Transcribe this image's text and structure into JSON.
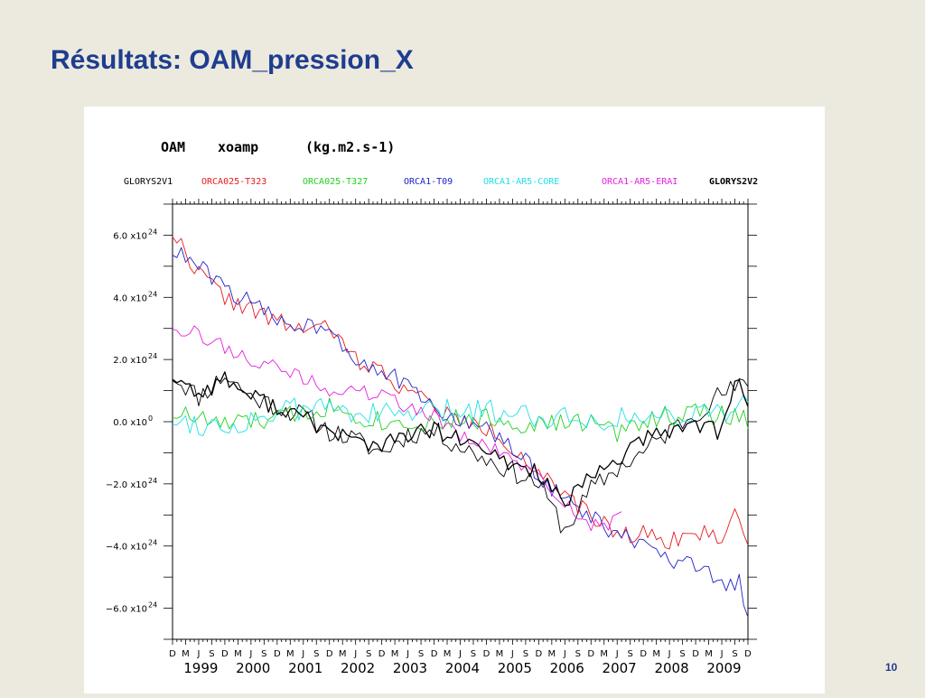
{
  "slide": {
    "title": "Résultats: OAM_pression_X",
    "page_number": "10"
  },
  "chart_data": {
    "type": "line",
    "title_parts": [
      "OAM",
      "xoamp",
      "(kg.m2.s-1)"
    ],
    "ylim": [
      -7.0,
      7.0
    ],
    "yunit": "x10^24",
    "y_ticks": [
      {
        "value": 6,
        "label": "6.0 x10",
        "exp": "24"
      },
      {
        "value": 4,
        "label": "4.0 x10",
        "exp": "24"
      },
      {
        "value": 2,
        "label": "2.0 x10",
        "exp": "24"
      },
      {
        "value": 0,
        "label": "0.0 x10",
        "exp": "0"
      },
      {
        "value": -2,
        "label": "−2.0 x10",
        "exp": "24"
      },
      {
        "value": -4,
        "label": "−4.0 x10",
        "exp": "24"
      },
      {
        "value": -6,
        "label": "−6.0 x10",
        "exp": "24"
      }
    ],
    "x_start": "Dec 1998",
    "x_end": "Dec 2009",
    "month_labels": [
      "D",
      "M",
      "J",
      "S",
      "D",
      "M",
      "J",
      "S",
      "D",
      "M",
      "J",
      "S",
      "D",
      "M",
      "J",
      "S",
      "D",
      "M",
      "J",
      "S",
      "D",
      "M",
      "J",
      "S",
      "D",
      "M",
      "J",
      "S",
      "D",
      "M",
      "J",
      "S",
      "D",
      "M",
      "J",
      "S",
      "D",
      "M",
      "J",
      "S",
      "D",
      "M",
      "J",
      "S",
      "D"
    ],
    "year_labels": [
      "1999",
      "2000",
      "2001",
      "2002",
      "2003",
      "2004",
      "2005",
      "2006",
      "2007",
      "2008",
      "2009"
    ],
    "grid": false,
    "legend_position": "top",
    "series": [
      {
        "name": "GLORYS2V1",
        "color": "#000000",
        "bold": false,
        "anchors": [
          [
            0,
            1.5
          ],
          [
            6,
            0.8
          ],
          [
            12,
            1.5
          ],
          [
            18,
            0.8
          ],
          [
            24,
            0.5
          ],
          [
            30,
            0.2
          ],
          [
            36,
            -0.3
          ],
          [
            42,
            -0.6
          ],
          [
            48,
            -1.0
          ],
          [
            54,
            -0.4
          ],
          [
            60,
            -0.3
          ],
          [
            66,
            -0.8
          ],
          [
            72,
            -1.2
          ],
          [
            78,
            -1.6
          ],
          [
            84,
            -2.0
          ],
          [
            90,
            -3.5
          ],
          [
            96,
            -2.2
          ],
          [
            102,
            -1.5
          ],
          [
            108,
            -1.0
          ],
          [
            114,
            -0.3
          ],
          [
            120,
            0.3
          ],
          [
            126,
            0.9
          ],
          [
            132,
            1.2
          ]
        ],
        "noise": 0.35,
        "seed": 11
      },
      {
        "name": "ORCA025-T323",
        "color": "#e8191e",
        "bold": false,
        "anchors": [
          [
            0,
            6.1
          ],
          [
            6,
            4.8
          ],
          [
            12,
            4.0
          ],
          [
            18,
            3.6
          ],
          [
            24,
            3.2
          ],
          [
            30,
            3.0
          ],
          [
            36,
            3.0
          ],
          [
            42,
            2.0
          ],
          [
            48,
            1.6
          ],
          [
            54,
            1.0
          ],
          [
            60,
            0.5
          ],
          [
            66,
            0.0
          ],
          [
            72,
            -0.2
          ],
          [
            78,
            -0.8
          ],
          [
            84,
            -1.6
          ],
          [
            90,
            -2.5
          ],
          [
            96,
            -3.0
          ],
          [
            102,
            -3.6
          ],
          [
            108,
            -3.6
          ],
          [
            114,
            -3.8
          ],
          [
            120,
            -3.6
          ],
          [
            126,
            -3.7
          ],
          [
            129,
            -2.9
          ],
          [
            132,
            -3.8
          ]
        ],
        "noise": 0.3,
        "seed": 22
      },
      {
        "name": "ORCA025-T327",
        "color": "#21d11f",
        "bold": false,
        "anchors": [
          [
            0,
            0.3
          ],
          [
            12,
            -0.1
          ],
          [
            24,
            0.1
          ],
          [
            36,
            0.5
          ],
          [
            48,
            0.0
          ],
          [
            60,
            0.0
          ],
          [
            72,
            0.1
          ],
          [
            84,
            -0.1
          ],
          [
            96,
            0.0
          ],
          [
            102,
            -0.4
          ],
          [
            108,
            0.1
          ],
          [
            120,
            0.3
          ],
          [
            132,
            0.1
          ]
        ],
        "noise": 0.35,
        "seed": 33
      },
      {
        "name": "ORCA1-T09",
        "color": "#1f23c8",
        "bold": false,
        "anchors": [
          [
            0,
            5.5
          ],
          [
            6,
            5.0
          ],
          [
            12,
            4.3
          ],
          [
            18,
            3.8
          ],
          [
            24,
            3.3
          ],
          [
            30,
            3.1
          ],
          [
            36,
            3.1
          ],
          [
            42,
            2.0
          ],
          [
            48,
            1.7
          ],
          [
            54,
            1.1
          ],
          [
            60,
            0.4
          ],
          [
            66,
            0.0
          ],
          [
            72,
            -0.2
          ],
          [
            78,
            -0.9
          ],
          [
            84,
            -1.7
          ],
          [
            90,
            -2.5
          ],
          [
            96,
            -3.1
          ],
          [
            102,
            -3.6
          ],
          [
            108,
            -4.0
          ],
          [
            114,
            -4.5
          ],
          [
            120,
            -4.7
          ],
          [
            126,
            -5.2
          ],
          [
            130,
            -5.2
          ],
          [
            132,
            -6.5
          ]
        ],
        "noise": 0.3,
        "seed": 44
      },
      {
        "name": "ORCA1-AR5-CORE",
        "color": "#1fe0e6",
        "bold": false,
        "anchors": [
          [
            0,
            0.1
          ],
          [
            12,
            -0.2
          ],
          [
            24,
            0.3
          ],
          [
            36,
            0.5
          ],
          [
            48,
            0.2
          ],
          [
            60,
            0.3
          ],
          [
            72,
            0.4
          ],
          [
            84,
            0.2
          ],
          [
            96,
            0.1
          ],
          [
            108,
            0.1
          ],
          [
            120,
            0.3
          ],
          [
            132,
            0.5
          ]
        ],
        "noise": 0.4,
        "seed": 55
      },
      {
        "name": "ORCA1-AR5-ERAI",
        "color": "#e51ee0",
        "bold": false,
        "anchors": [
          [
            0,
            3.1
          ],
          [
            6,
            2.8
          ],
          [
            12,
            2.4
          ],
          [
            18,
            2.0
          ],
          [
            24,
            1.7
          ],
          [
            30,
            1.4
          ],
          [
            36,
            1.0
          ],
          [
            42,
            1.0
          ],
          [
            48,
            0.8
          ],
          [
            54,
            0.5
          ],
          [
            60,
            0.2
          ],
          [
            66,
            -0.5
          ],
          [
            72,
            -0.8
          ],
          [
            78,
            -1.2
          ],
          [
            84,
            -1.8
          ],
          [
            90,
            -2.6
          ],
          [
            96,
            -3.3
          ],
          [
            100,
            -3.4
          ],
          [
            103,
            -2.9
          ]
        ],
        "noise": 0.25,
        "seed": 66
      },
      {
        "name": "GLORYS2V2",
        "color": "#000000",
        "bold": true,
        "anchors": [
          [
            0,
            1.5
          ],
          [
            6,
            0.9
          ],
          [
            12,
            1.4
          ],
          [
            18,
            0.8
          ],
          [
            24,
            0.5
          ],
          [
            30,
            0.1
          ],
          [
            36,
            -0.3
          ],
          [
            42,
            -0.6
          ],
          [
            48,
            -0.8
          ],
          [
            54,
            -0.4
          ],
          [
            60,
            -0.3
          ],
          [
            66,
            -0.6
          ],
          [
            72,
            -1.0
          ],
          [
            78,
            -1.4
          ],
          [
            84,
            -1.6
          ],
          [
            90,
            -2.7
          ],
          [
            96,
            -1.8
          ],
          [
            102,
            -1.2
          ],
          [
            108,
            -0.6
          ],
          [
            114,
            -0.3
          ],
          [
            120,
            0.0
          ],
          [
            126,
            -0.4
          ],
          [
            130,
            1.6
          ],
          [
            132,
            0.6
          ]
        ],
        "noise": 0.3,
        "seed": 77
      }
    ]
  }
}
